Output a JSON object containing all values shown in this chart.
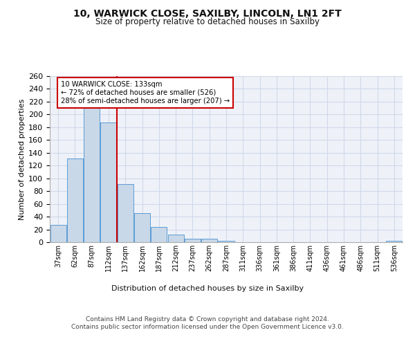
{
  "title1": "10, WARWICK CLOSE, SAXILBY, LINCOLN, LN1 2FT",
  "title2": "Size of property relative to detached houses in Saxilby",
  "xlabel": "Distribution of detached houses by size in Saxilby",
  "ylabel": "Number of detached properties",
  "bar_color": "#c8d8e8",
  "bar_edge_color": "#5b9bd5",
  "grid_color": "#d0d8e8",
  "categories": [
    "37sqm",
    "62sqm",
    "87sqm",
    "112sqm",
    "137sqm",
    "162sqm",
    "187sqm",
    "212sqm",
    "237sqm",
    "262sqm",
    "287sqm",
    "311sqm",
    "336sqm",
    "361sqm",
    "386sqm",
    "411sqm",
    "436sqm",
    "461sqm",
    "486sqm",
    "511sqm",
    "536sqm"
  ],
  "values": [
    27,
    131,
    213,
    187,
    91,
    45,
    24,
    12,
    5,
    5,
    2,
    0,
    0,
    0,
    0,
    0,
    0,
    0,
    0,
    0,
    2
  ],
  "vline_color": "#cc0000",
  "annotation_text": "10 WARWICK CLOSE: 133sqm\n← 72% of detached houses are smaller (526)\n28% of semi-detached houses are larger (207) →",
  "annotation_box_color": "#ffffff",
  "annotation_box_edge": "#cc0000",
  "ylim": [
    0,
    260
  ],
  "yticks": [
    0,
    20,
    40,
    60,
    80,
    100,
    120,
    140,
    160,
    180,
    200,
    220,
    240,
    260
  ],
  "footer": "Contains HM Land Registry data © Crown copyright and database right 2024.\nContains public sector information licensed under the Open Government Licence v3.0.",
  "background_color": "#eef2f8",
  "fig_background": "#ffffff"
}
